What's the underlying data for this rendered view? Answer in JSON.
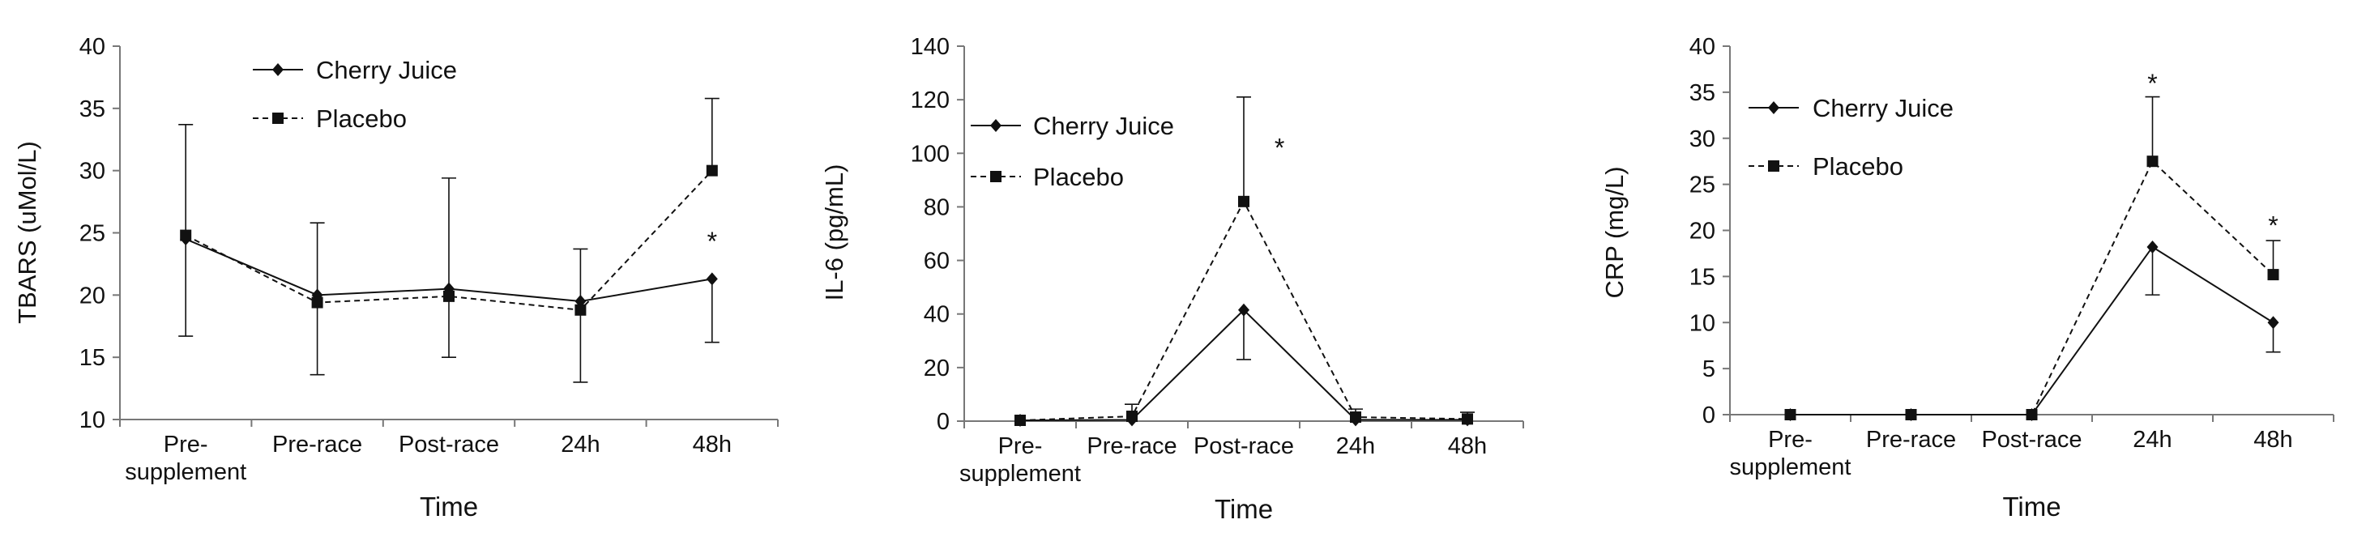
{
  "chart_data": [
    {
      "type": "line",
      "title": "",
      "xlabel": "Time",
      "ylabel": "TBARS (uMol/L)",
      "categories": [
        [
          "Pre-",
          "supplement"
        ],
        [
          "Pre-race"
        ],
        [
          "Post-race"
        ],
        [
          "24h"
        ],
        [
          "48h"
        ]
      ],
      "ylim": [
        10,
        40
      ],
      "yticks": [
        10,
        15,
        20,
        25,
        30,
        35,
        40
      ],
      "grid": false,
      "legend_position": "top-left",
      "series": [
        {
          "name": "Cherry Juice",
          "style": "solid",
          "marker": "diamond",
          "values": [
            24.5,
            20.0,
            20.5,
            19.5,
            21.3
          ],
          "error_plus": [
            9.2,
            5.8,
            8.9,
            4.2,
            0
          ],
          "error_minus": [
            0,
            0,
            0,
            0,
            5.1
          ]
        },
        {
          "name": "Placebo",
          "style": "dashed",
          "marker": "square",
          "values": [
            24.8,
            19.4,
            19.9,
            18.8,
            30.0
          ],
          "error_plus": [
            0,
            0,
            0,
            0,
            5.8
          ],
          "error_minus": [
            8.1,
            5.8,
            4.9,
            5.8,
            0
          ]
        }
      ],
      "annotations": [
        {
          "text": "*",
          "x_index": 4,
          "y": 24.5
        }
      ]
    },
    {
      "type": "line",
      "title": "",
      "xlabel": "Time",
      "ylabel": "IL-6 (pg/mL)",
      "categories": [
        [
          "Pre-",
          "supplement"
        ],
        [
          "Pre-race"
        ],
        [
          "Post-race"
        ],
        [
          "24h"
        ],
        [
          "48h"
        ]
      ],
      "ylim": [
        0,
        140
      ],
      "yticks": [
        0,
        20,
        40,
        60,
        80,
        100,
        120,
        140
      ],
      "grid": false,
      "legend_position": "top-left",
      "series": [
        {
          "name": "Cherry Juice",
          "style": "solid",
          "marker": "diamond",
          "values": [
            0.3,
            0.5,
            41.5,
            0.5,
            0.5
          ],
          "error_plus": [
            0,
            0,
            0,
            0,
            0
          ],
          "error_minus": [
            0,
            0,
            18.5,
            0,
            0
          ]
        },
        {
          "name": "Placebo",
          "style": "dashed",
          "marker": "square",
          "values": [
            0.3,
            1.8,
            82.0,
            1.5,
            0.8
          ],
          "error_plus": [
            0,
            4.5,
            39.0,
            3.0,
            2.5
          ],
          "error_minus": [
            0,
            0,
            0,
            0,
            0
          ]
        }
      ],
      "annotations": [
        {
          "text": "*",
          "x_index": 2.32,
          "y": 103
        }
      ]
    },
    {
      "type": "line",
      "title": "",
      "xlabel": "Time",
      "ylabel": "CRP (mg/L)",
      "categories": [
        [
          "Pre-",
          "supplement"
        ],
        [
          "Pre-race"
        ],
        [
          "Post-race"
        ],
        [
          "24h"
        ],
        [
          "48h"
        ]
      ],
      "ylim": [
        0,
        40
      ],
      "yticks": [
        0,
        5,
        10,
        15,
        20,
        25,
        30,
        35,
        40
      ],
      "grid": false,
      "legend_position": "top-left",
      "series": [
        {
          "name": "Cherry Juice",
          "style": "solid",
          "marker": "diamond",
          "values": [
            0,
            0,
            0,
            18.2,
            10.0
          ],
          "error_plus": [
            0,
            0,
            0,
            0,
            0
          ],
          "error_minus": [
            0,
            0,
            0,
            5.2,
            3.2
          ]
        },
        {
          "name": "Placebo",
          "style": "dashed",
          "marker": "square",
          "values": [
            0,
            0,
            0,
            27.5,
            15.2
          ],
          "error_plus": [
            0,
            0,
            0,
            7.0,
            3.7
          ],
          "error_minus": [
            0,
            0,
            0,
            0,
            0
          ]
        }
      ],
      "annotations": [
        {
          "text": "*",
          "x_index": 3,
          "y": 36.2
        },
        {
          "text": "*",
          "x_index": 4,
          "y": 20.8
        }
      ]
    }
  ]
}
